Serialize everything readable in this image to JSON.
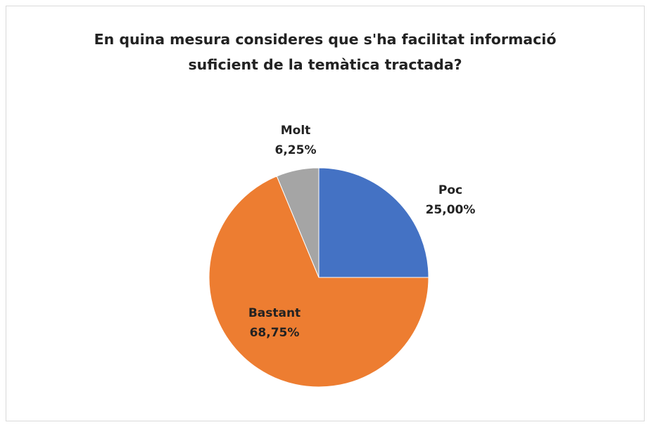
{
  "chart_data": {
    "type": "pie",
    "title": "En quina mesura consideres que s'ha facilitat informació suficient de la temàtica tractada?",
    "categories": [
      "Poc",
      "Bastant",
      "Molt"
    ],
    "values": [
      25,
      68.75,
      6.25
    ],
    "value_labels": [
      "25,00%",
      "68,75%",
      "6,25%"
    ],
    "colors": [
      "#4472c4",
      "#ed7d31",
      "#a5a5a5"
    ]
  }
}
